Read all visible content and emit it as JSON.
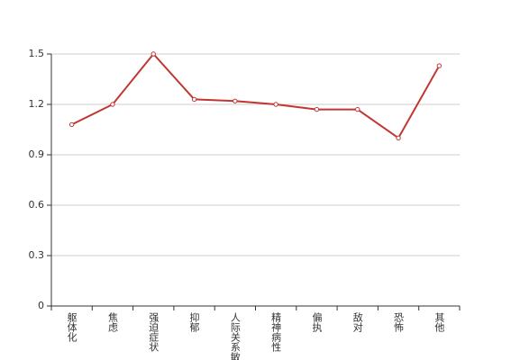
{
  "chart_data": {
    "type": "line",
    "categories": [
      "躯体化",
      "焦虑",
      "强迫症状",
      "抑郁",
      "人际关系敏感",
      "精神病性",
      "偏执",
      "敌对",
      "恐怖",
      "其他"
    ],
    "series": [
      {
        "color": "#c23531",
        "values": [
          1.08,
          1.2,
          1.5,
          1.23,
          1.22,
          1.2,
          1.17,
          1.17,
          1.0,
          1.43
        ]
      }
    ],
    "ylim": [
      0,
      1.5
    ],
    "yticks": [
      0,
      0.3,
      0.6,
      0.9,
      1.2,
      1.5
    ],
    "grid": true
  }
}
